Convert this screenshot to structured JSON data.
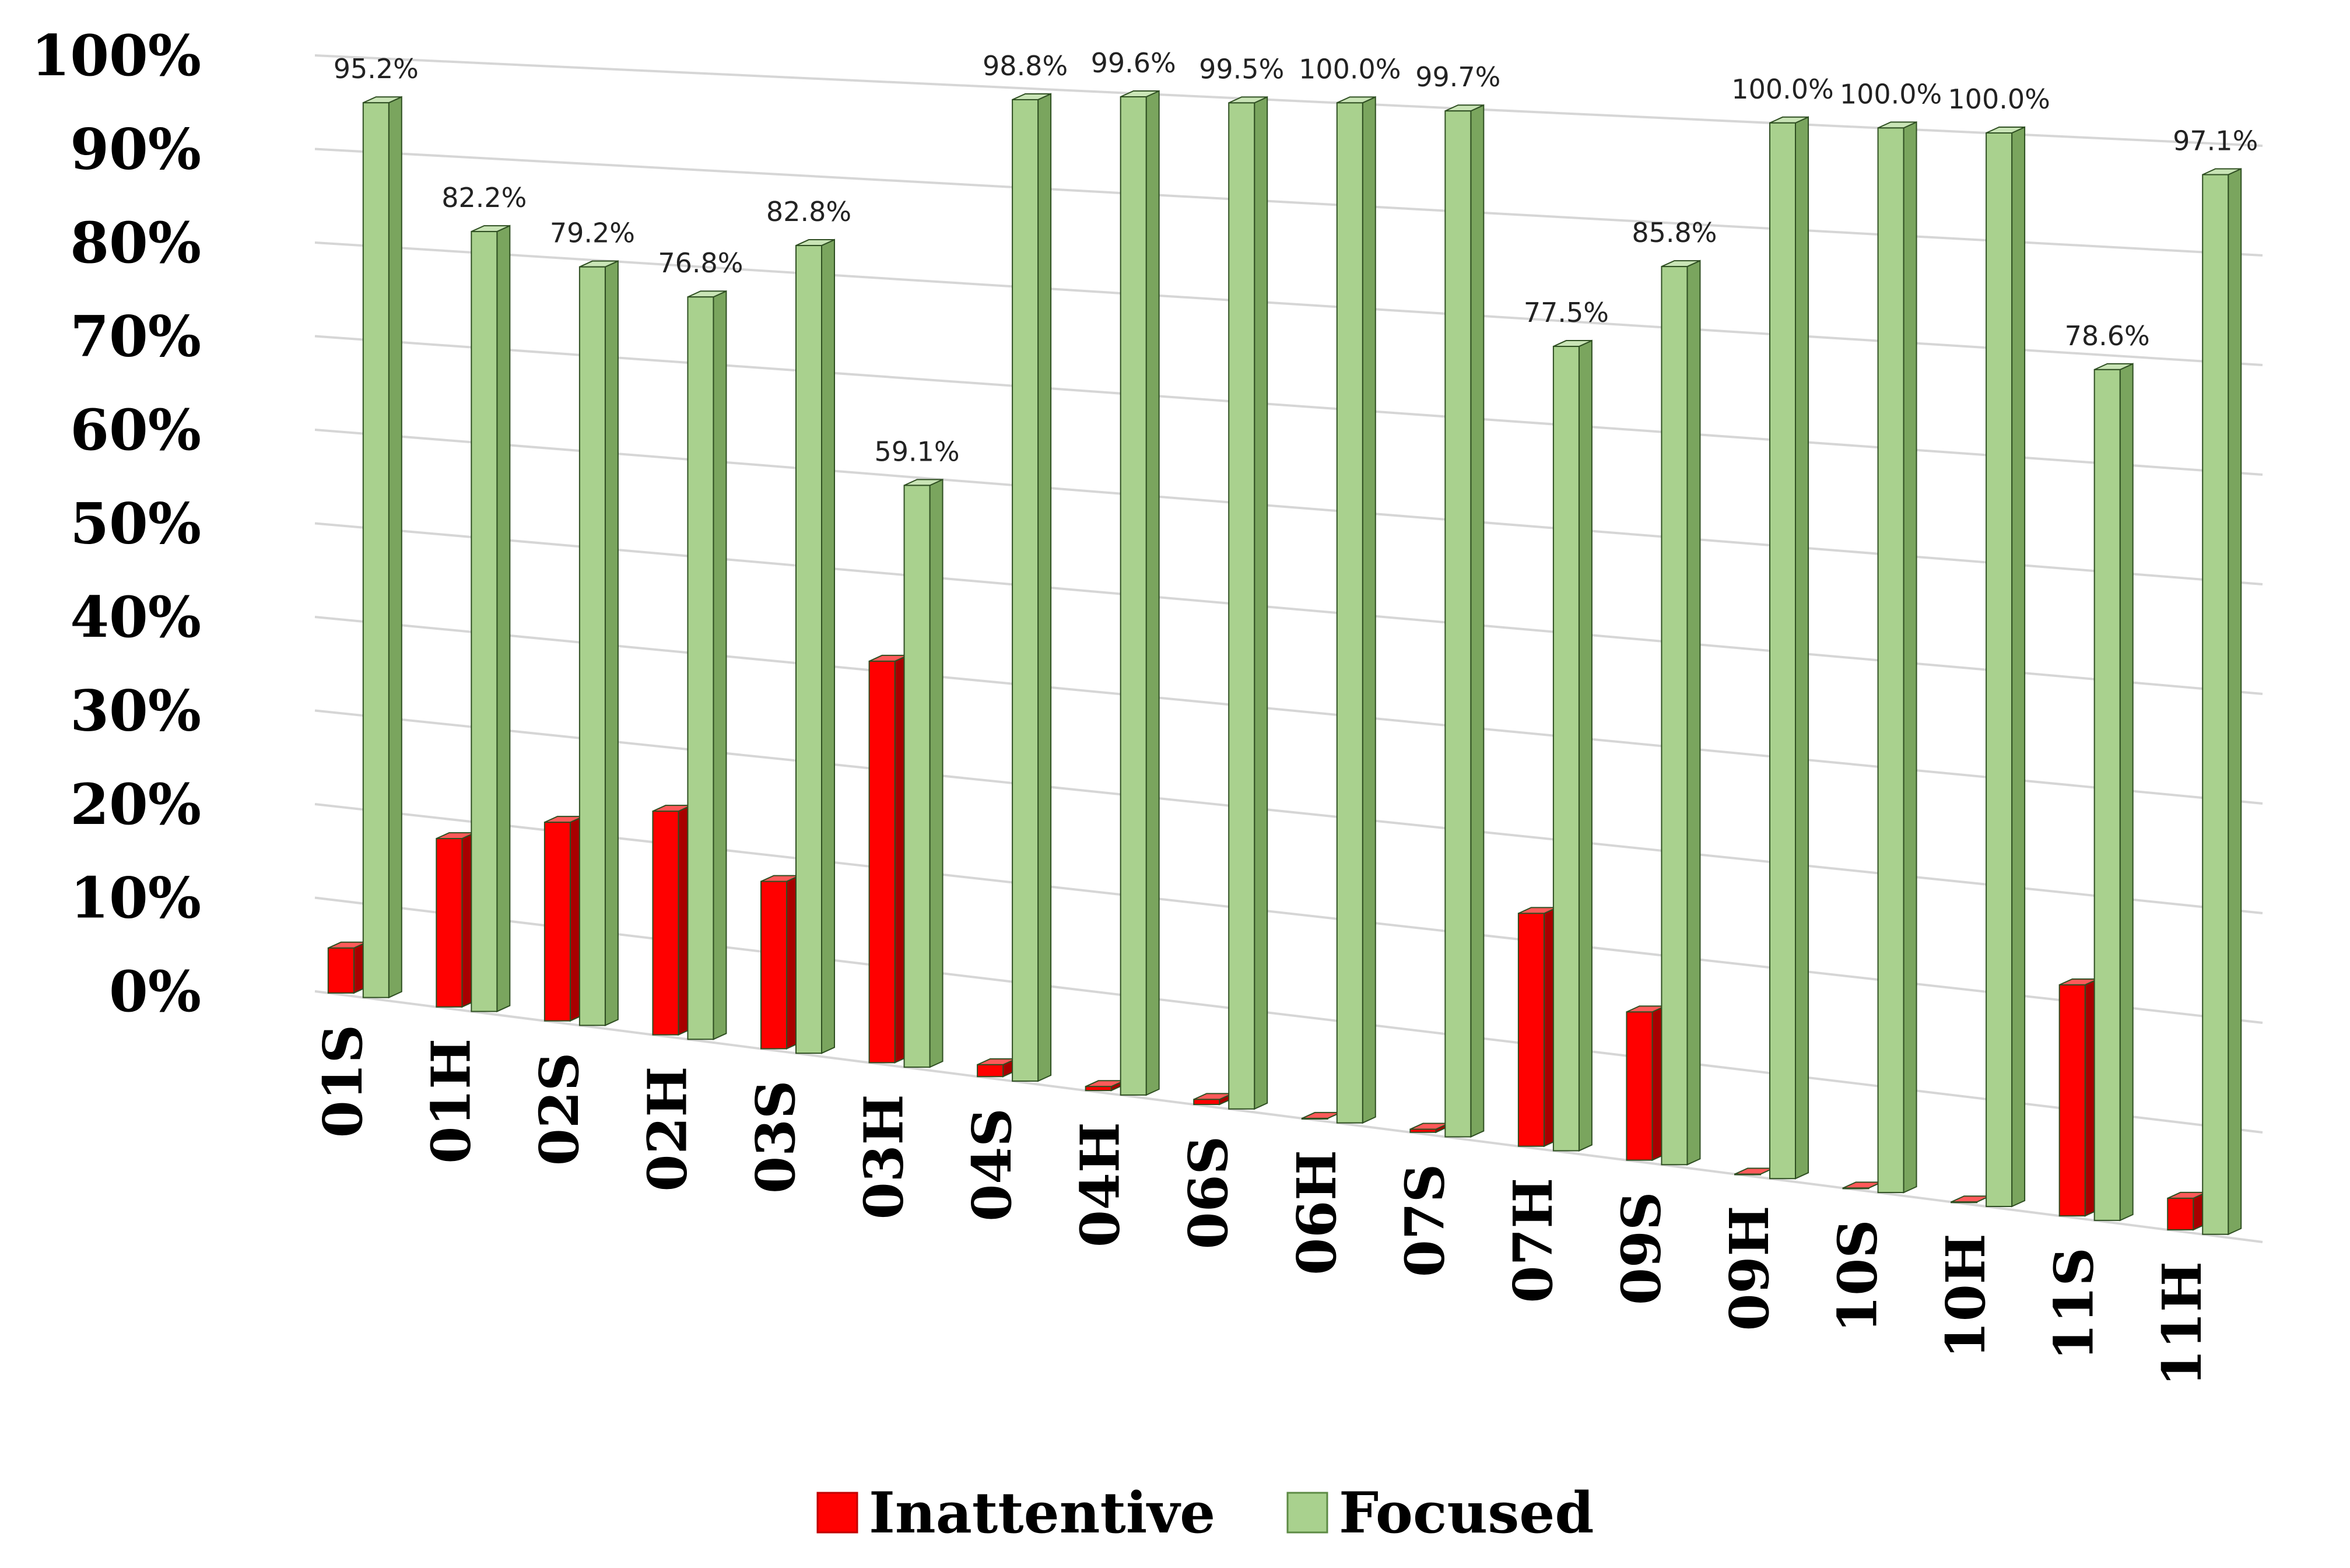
{
  "chart_data": {
    "type": "bar",
    "title": "",
    "xlabel": "",
    "ylabel": "",
    "ylim": [
      0,
      100
    ],
    "yticks": [
      "0%",
      "10%",
      "20%",
      "30%",
      "40%",
      "50%",
      "60%",
      "70%",
      "80%",
      "90%",
      "100%"
    ],
    "categories": [
      "01S",
      "01H",
      "02S",
      "02H",
      "03S",
      "03H",
      "04S",
      "04H",
      "06S",
      "06H",
      "07S",
      "07H",
      "09S",
      "09H",
      "10S",
      "10H",
      "11S",
      "11H"
    ],
    "series": [
      {
        "name": "Inattentive",
        "color": "#ff0000",
        "values": [
          4.8,
          17.8,
          20.8,
          23.2,
          17.2,
          40.9,
          1.2,
          0.4,
          0.5,
          0.0,
          0.3,
          22.5,
          14.2,
          0.0,
          0.0,
          0.0,
          21.4,
          2.9
        ]
      },
      {
        "name": "Focused",
        "color": "#a9d18e",
        "values": [
          95.2,
          82.2,
          79.2,
          76.8,
          82.8,
          59.1,
          98.8,
          99.6,
          99.5,
          100.0,
          99.7,
          77.5,
          85.8,
          100.0,
          100.0,
          100.0,
          78.6,
          97.1
        ]
      }
    ],
    "data_labels": [
      "95.2%",
      "82.2%",
      "79.2%",
      "76.8%",
      "82.8%",
      "59.1%",
      "98.8%",
      "99.6%",
      "99.5%",
      "100.0%",
      "99.7%",
      "77.5%",
      "85.8%",
      "100.0%",
      "100.0%",
      "100.0%",
      "78.6%",
      "97.1%"
    ],
    "legend": {
      "position": "bottom",
      "items": [
        "Inattentive",
        "Focused"
      ]
    }
  }
}
